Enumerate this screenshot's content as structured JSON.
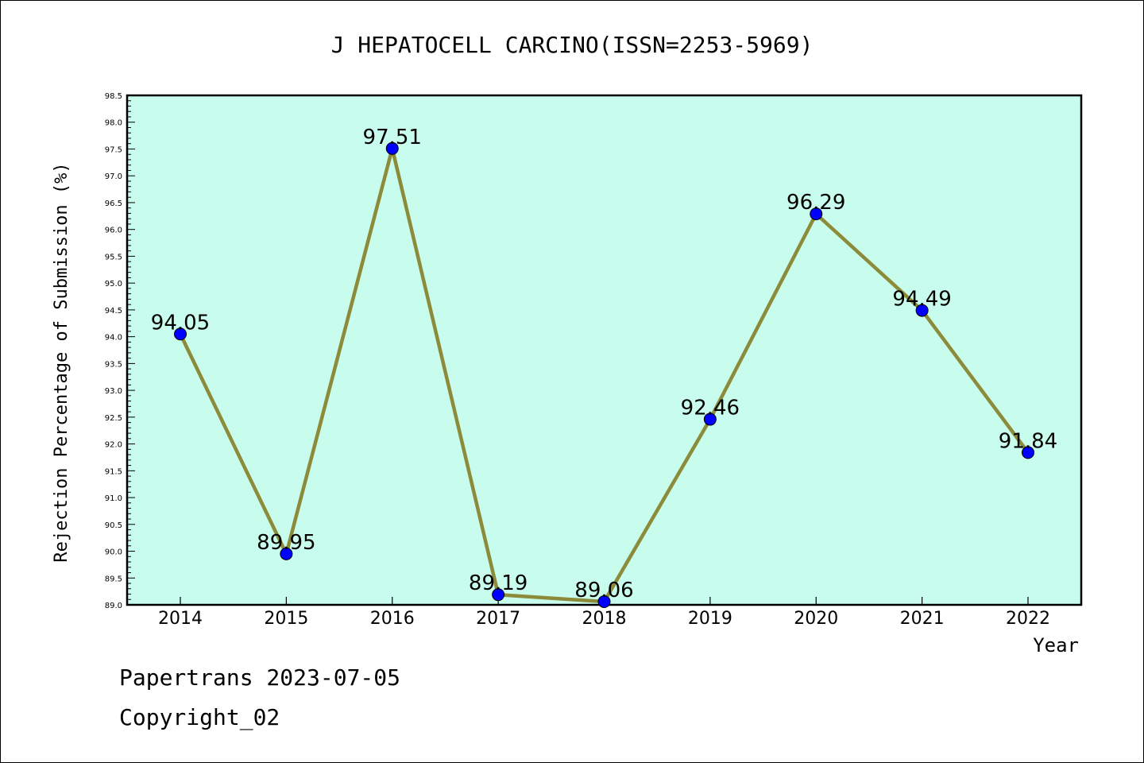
{
  "chart_data": {
    "type": "line",
    "title": "J HEPATOCELL CARCINO(ISSN=2253-5969)",
    "xlabel": "Year",
    "ylabel": "Rejection Percentage of Submission (%)",
    "categories": [
      "2014",
      "2015",
      "2016",
      "2017",
      "2018",
      "2019",
      "2020",
      "2021",
      "2022"
    ],
    "values": [
      94.05,
      89.95,
      97.51,
      89.19,
      89.06,
      92.46,
      96.29,
      94.49,
      91.84
    ],
    "data_labels": [
      "94.05",
      "89.95",
      "97.51",
      "89.19",
      "89.06",
      "92.46",
      "96.29",
      "94.49",
      "91.84"
    ],
    "ylim": [
      89.0,
      98.5
    ],
    "yticks": [
      "89.0",
      "89.5",
      "90.0",
      "90.5",
      "91.0",
      "91.5",
      "92.0",
      "92.5",
      "93.0",
      "93.5",
      "94.0",
      "94.5",
      "95.0",
      "95.5",
      "96.0",
      "96.5",
      "97.0",
      "97.5",
      "98.0",
      "98.5"
    ],
    "grid": false,
    "colors": {
      "plot_background": "#c8fcec",
      "line": "#8b8b3a",
      "marker": "#0000ff"
    }
  },
  "footer": {
    "source": "Papertrans 2023-07-05",
    "copyright": "Copyright_02"
  }
}
